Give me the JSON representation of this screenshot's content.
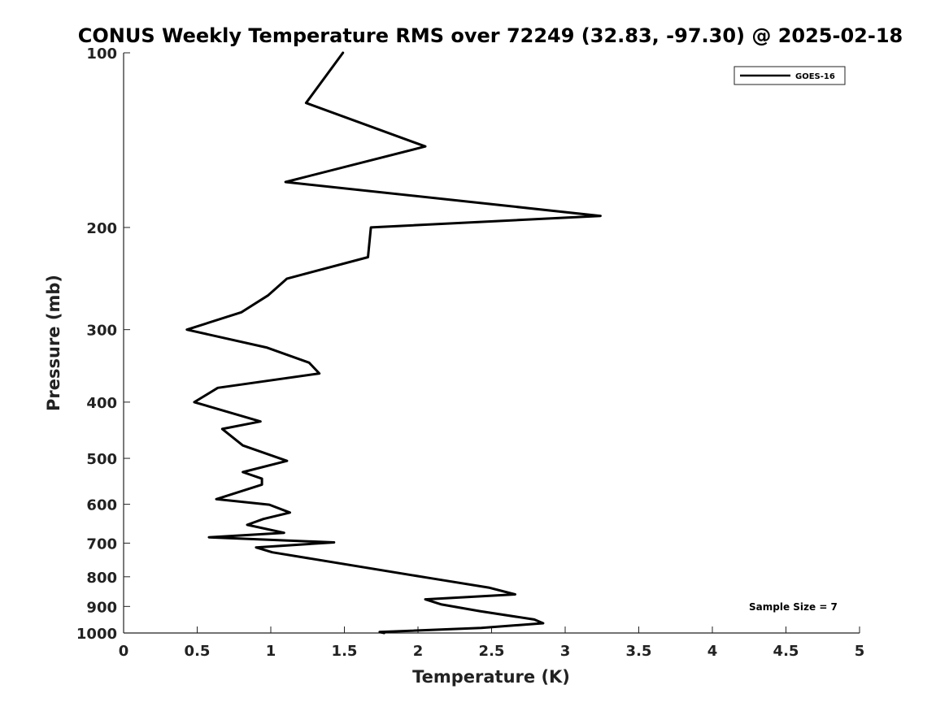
{
  "chart_data": {
    "type": "line",
    "title": "CONUS Weekly Temperature RMS over 72249 (32.83, -97.30) @ 2025-02-18",
    "xlabel": "Temperature (K)",
    "ylabel": "Pressure (mb)",
    "xlim": [
      0,
      5
    ],
    "ylim": [
      100,
      1000
    ],
    "y_scale": "log",
    "y_inverted": true,
    "x_ticks": [
      0,
      0.5,
      1,
      1.5,
      2,
      2.5,
      3,
      3.5,
      4,
      4.5,
      5
    ],
    "x_tick_labels": [
      "0",
      "0.5",
      "1",
      "1.5",
      "2",
      "2.5",
      "3",
      "3.5",
      "4",
      "4.5",
      "5"
    ],
    "y_ticks": [
      100,
      200,
      300,
      400,
      500,
      600,
      700,
      800,
      900,
      1000
    ],
    "y_tick_labels": [
      "100",
      "200",
      "300",
      "400",
      "500",
      "600",
      "700",
      "800",
      "900",
      "1000"
    ],
    "grid": false,
    "legend_position": "top-right",
    "series": [
      {
        "name": "GOES-16",
        "color": "#000000",
        "x": [
          1.49,
          1.24,
          2.05,
          1.1,
          3.24,
          1.68,
          1.66,
          1.11,
          0.98,
          0.8,
          0.43,
          0.97,
          1.26,
          1.33,
          0.64,
          0.48,
          0.93,
          0.67,
          0.81,
          1.11,
          0.81,
          0.94,
          0.94,
          0.63,
          0.99,
          1.13,
          0.95,
          0.84,
          1.09,
          0.58,
          1.43,
          0.9,
          1.01,
          2.09,
          2.48,
          2.66,
          2.05,
          2.16,
          2.42,
          2.79,
          2.85,
          2.43,
          1.74,
          1.77
        ],
        "y": [
          100,
          122,
          145,
          167,
          191,
          200,
          225,
          245,
          262,
          280,
          300,
          322,
          342,
          357,
          378,
          400,
          432,
          445,
          475,
          505,
          528,
          542,
          555,
          588,
          601,
          620,
          636,
          651,
          672,
          684,
          698,
          712,
          726,
          805,
          835,
          858,
          875,
          893,
          917,
          948,
          962,
          980,
          996,
          1000
        ]
      }
    ],
    "annotations": [
      "Sample Size = 7"
    ]
  }
}
